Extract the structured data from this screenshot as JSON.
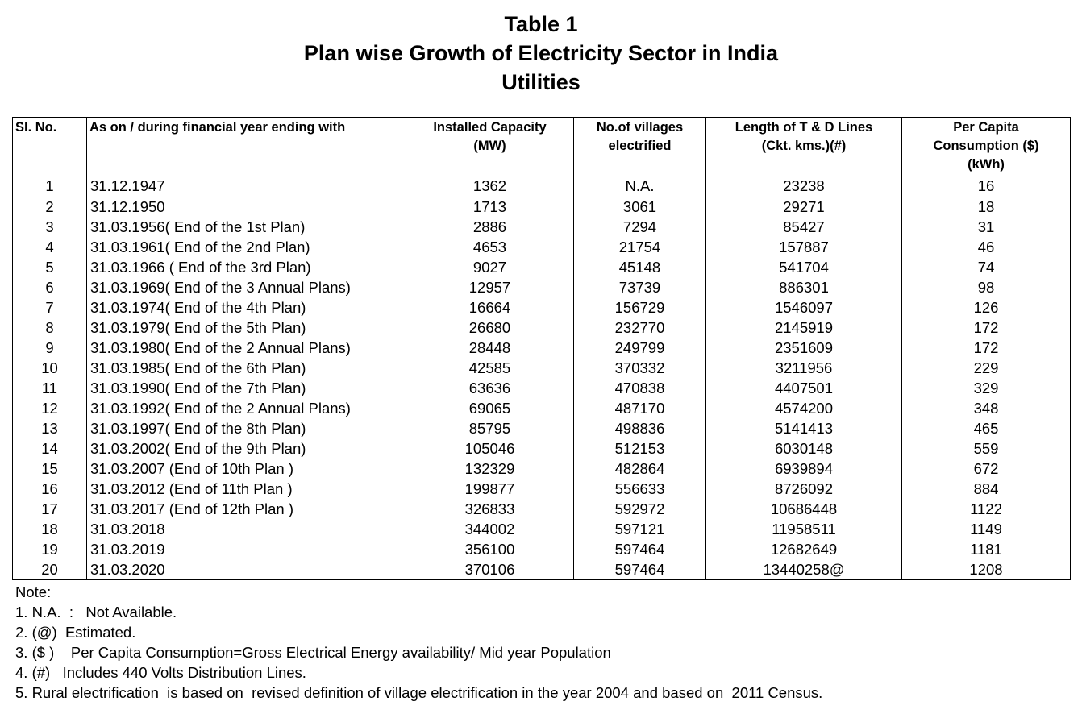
{
  "header": {
    "title_lines": [
      "Table 1",
      "Plan wise Growth of Electricity Sector in India",
      "Utilities"
    ]
  },
  "table": {
    "columns": [
      "Sl. No.",
      "As on / during financial year ending with",
      "Installed Capacity\n(MW)",
      "No.of villages\nelectrified",
      "Length of T & D Lines\n(Ckt. kms.)(#)",
      "Per Capita\nConsumption ($)\n(kWh)"
    ],
    "rows": [
      [
        "1",
        "31.12.1947",
        "1362",
        "N.A.",
        "23238",
        "16"
      ],
      [
        "2",
        "31.12.1950",
        "1713",
        "3061",
        "29271",
        "18"
      ],
      [
        "3",
        "31.03.1956( End of the 1st Plan)",
        "2886",
        "7294",
        "85427",
        "31"
      ],
      [
        "4",
        "31.03.1961( End of the 2nd Plan)",
        "4653",
        "21754",
        "157887",
        "46"
      ],
      [
        "5",
        "31.03.1966 ( End of the 3rd Plan)",
        "9027",
        "45148",
        "541704",
        "74"
      ],
      [
        "6",
        "31.03.1969( End of the 3 Annual Plans)",
        "12957",
        "73739",
        "886301",
        "98"
      ],
      [
        "7",
        "31.03.1974( End of the 4th Plan)",
        "16664",
        "156729",
        "1546097",
        "126"
      ],
      [
        "8",
        "31.03.1979( End of the 5th Plan)",
        "26680",
        "232770",
        "2145919",
        "172"
      ],
      [
        "9",
        "31.03.1980( End of the 2 Annual Plans)",
        "28448",
        "249799",
        "2351609",
        "172"
      ],
      [
        "10",
        "31.03.1985( End of the 6th Plan)",
        "42585",
        "370332",
        "3211956",
        "229"
      ],
      [
        "11",
        "31.03.1990( End of the 7th Plan)",
        "63636",
        "470838",
        "4407501",
        "329"
      ],
      [
        "12",
        "31.03.1992( End of the 2 Annual Plans)",
        "69065",
        "487170",
        "4574200",
        "348"
      ],
      [
        "13",
        "31.03.1997( End of the 8th Plan)",
        "85795",
        "498836",
        "5141413",
        "465"
      ],
      [
        "14",
        "31.03.2002( End of the 9th Plan)",
        "105046",
        "512153",
        "6030148",
        "559"
      ],
      [
        "15",
        "31.03.2007 (End of 10th Plan )",
        "132329",
        "482864",
        "6939894",
        "672"
      ],
      [
        "16",
        "31.03.2012 (End of 11th Plan )",
        "199877",
        "556633",
        "8726092",
        "884"
      ],
      [
        "17",
        "31.03.2017 (End of 12th Plan )",
        "326833",
        "592972",
        "10686448",
        "1122"
      ],
      [
        "18",
        "31.03.2018",
        "344002",
        "597121",
        "11958511",
        "1149"
      ],
      [
        "19",
        "31.03.2019",
        "356100",
        "597464",
        "12682649",
        "1181"
      ],
      [
        "20",
        "31.03.2020",
        "370106",
        "597464",
        "13440258@",
        "1208"
      ]
    ]
  },
  "notes": {
    "heading": "Note:",
    "items": [
      "1. N.A.  :   Not Available.",
      "2. (@)  Estimated.",
      "3. ($ )    Per Capita Consumption=Gross Electrical Energy availability/ Mid year Population",
      "4. (#)   Includes 440 Volts Distribution Lines.",
      "5. Rural electrification  is based on  revised definition of village electrification in the year 2004 and based on  2011 Census."
    ]
  }
}
